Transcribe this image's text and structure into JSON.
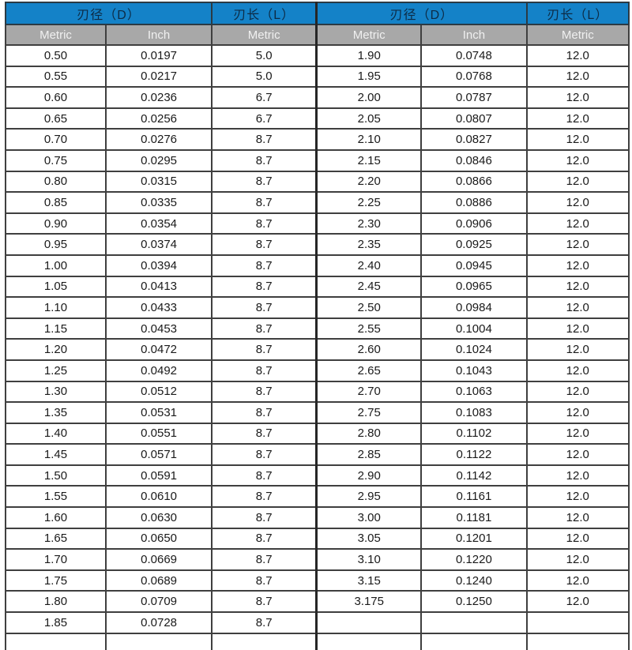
{
  "page": {
    "background_color": "#ffffff"
  },
  "table": {
    "colors": {
      "header_blue_bg": "#1482c8",
      "header_blue_text": "#0d2b45",
      "header_gray_bg": "#a8a8a8",
      "header_gray_text": "#f0f0f0",
      "cell_text": "#1a1a1a",
      "border": "#3f3f3f"
    },
    "headers": {
      "diameter_label": "刃径（D）",
      "length_label": "刃长（L）",
      "metric_label": "Metric",
      "inch_label": "Inch"
    },
    "rows": [
      {
        "l_metric": "0.50",
        "l_inch": "0.0197",
        "l_len": "5.0",
        "r_metric": "1.90",
        "r_inch": "0.0748",
        "r_len": "12.0"
      },
      {
        "l_metric": "0.55",
        "l_inch": "0.0217",
        "l_len": "5.0",
        "r_metric": "1.95",
        "r_inch": "0.0768",
        "r_len": "12.0"
      },
      {
        "l_metric": "0.60",
        "l_inch": "0.0236",
        "l_len": "6.7",
        "r_metric": "2.00",
        "r_inch": "0.0787",
        "r_len": "12.0"
      },
      {
        "l_metric": "0.65",
        "l_inch": "0.0256",
        "l_len": "6.7",
        "r_metric": "2.05",
        "r_inch": "0.0807",
        "r_len": "12.0"
      },
      {
        "l_metric": "0.70",
        "l_inch": "0.0276",
        "l_len": "8.7",
        "r_metric": "2.10",
        "r_inch": "0.0827",
        "r_len": "12.0"
      },
      {
        "l_metric": "0.75",
        "l_inch": "0.0295",
        "l_len": "8.7",
        "r_metric": "2.15",
        "r_inch": "0.0846",
        "r_len": "12.0"
      },
      {
        "l_metric": "0.80",
        "l_inch": "0.0315",
        "l_len": "8.7",
        "r_metric": "2.20",
        "r_inch": "0.0866",
        "r_len": "12.0"
      },
      {
        "l_metric": "0.85",
        "l_inch": "0.0335",
        "l_len": "8.7",
        "r_metric": "2.25",
        "r_inch": "0.0886",
        "r_len": "12.0"
      },
      {
        "l_metric": "0.90",
        "l_inch": "0.0354",
        "l_len": "8.7",
        "r_metric": "2.30",
        "r_inch": "0.0906",
        "r_len": "12.0"
      },
      {
        "l_metric": "0.95",
        "l_inch": "0.0374",
        "l_len": "8.7",
        "r_metric": "2.35",
        "r_inch": "0.0925",
        "r_len": "12.0"
      },
      {
        "l_metric": "1.00",
        "l_inch": "0.0394",
        "l_len": "8.7",
        "r_metric": "2.40",
        "r_inch": "0.0945",
        "r_len": "12.0"
      },
      {
        "l_metric": "1.05",
        "l_inch": "0.0413",
        "l_len": "8.7",
        "r_metric": "2.45",
        "r_inch": "0.0965",
        "r_len": "12.0"
      },
      {
        "l_metric": "1.10",
        "l_inch": "0.0433",
        "l_len": "8.7",
        "r_metric": "2.50",
        "r_inch": "0.0984",
        "r_len": "12.0"
      },
      {
        "l_metric": "1.15",
        "l_inch": "0.0453",
        "l_len": "8.7",
        "r_metric": "2.55",
        "r_inch": "0.1004",
        "r_len": "12.0"
      },
      {
        "l_metric": "1.20",
        "l_inch": "0.0472",
        "l_len": "8.7",
        "r_metric": "2.60",
        "r_inch": "0.1024",
        "r_len": "12.0"
      },
      {
        "l_metric": "1.25",
        "l_inch": "0.0492",
        "l_len": "8.7",
        "r_metric": "2.65",
        "r_inch": "0.1043",
        "r_len": "12.0"
      },
      {
        "l_metric": "1.30",
        "l_inch": "0.0512",
        "l_len": "8.7",
        "r_metric": "2.70",
        "r_inch": "0.1063",
        "r_len": "12.0"
      },
      {
        "l_metric": "1.35",
        "l_inch": "0.0531",
        "l_len": "8.7",
        "r_metric": "2.75",
        "r_inch": "0.1083",
        "r_len": "12.0"
      },
      {
        "l_metric": "1.40",
        "l_inch": "0.0551",
        "l_len": "8.7",
        "r_metric": "2.80",
        "r_inch": "0.1102",
        "r_len": "12.0"
      },
      {
        "l_metric": "1.45",
        "l_inch": "0.0571",
        "l_len": "8.7",
        "r_metric": "2.85",
        "r_inch": "0.1122",
        "r_len": "12.0"
      },
      {
        "l_metric": "1.50",
        "l_inch": "0.0591",
        "l_len": "8.7",
        "r_metric": "2.90",
        "r_inch": "0.1142",
        "r_len": "12.0"
      },
      {
        "l_metric": "1.55",
        "l_inch": "0.0610",
        "l_len": "8.7",
        "r_metric": "2.95",
        "r_inch": "0.1161",
        "r_len": "12.0"
      },
      {
        "l_metric": "1.60",
        "l_inch": "0.0630",
        "l_len": "8.7",
        "r_metric": "3.00",
        "r_inch": "0.1181",
        "r_len": "12.0"
      },
      {
        "l_metric": "1.65",
        "l_inch": "0.0650",
        "l_len": "8.7",
        "r_metric": "3.05",
        "r_inch": "0.1201",
        "r_len": "12.0"
      },
      {
        "l_metric": "1.70",
        "l_inch": "0.0669",
        "l_len": "8.7",
        "r_metric": "3.10",
        "r_inch": "0.1220",
        "r_len": "12.0"
      },
      {
        "l_metric": "1.75",
        "l_inch": "0.0689",
        "l_len": "8.7",
        "r_metric": "3.15",
        "r_inch": "0.1240",
        "r_len": "12.0"
      },
      {
        "l_metric": "1.80",
        "l_inch": "0.0709",
        "l_len": "8.7",
        "r_metric": "3.175",
        "r_inch": "0.1250",
        "r_len": "12.0"
      },
      {
        "l_metric": "1.85",
        "l_inch": "0.0728",
        "l_len": "8.7",
        "r_metric": "",
        "r_inch": "",
        "r_len": ""
      }
    ]
  }
}
